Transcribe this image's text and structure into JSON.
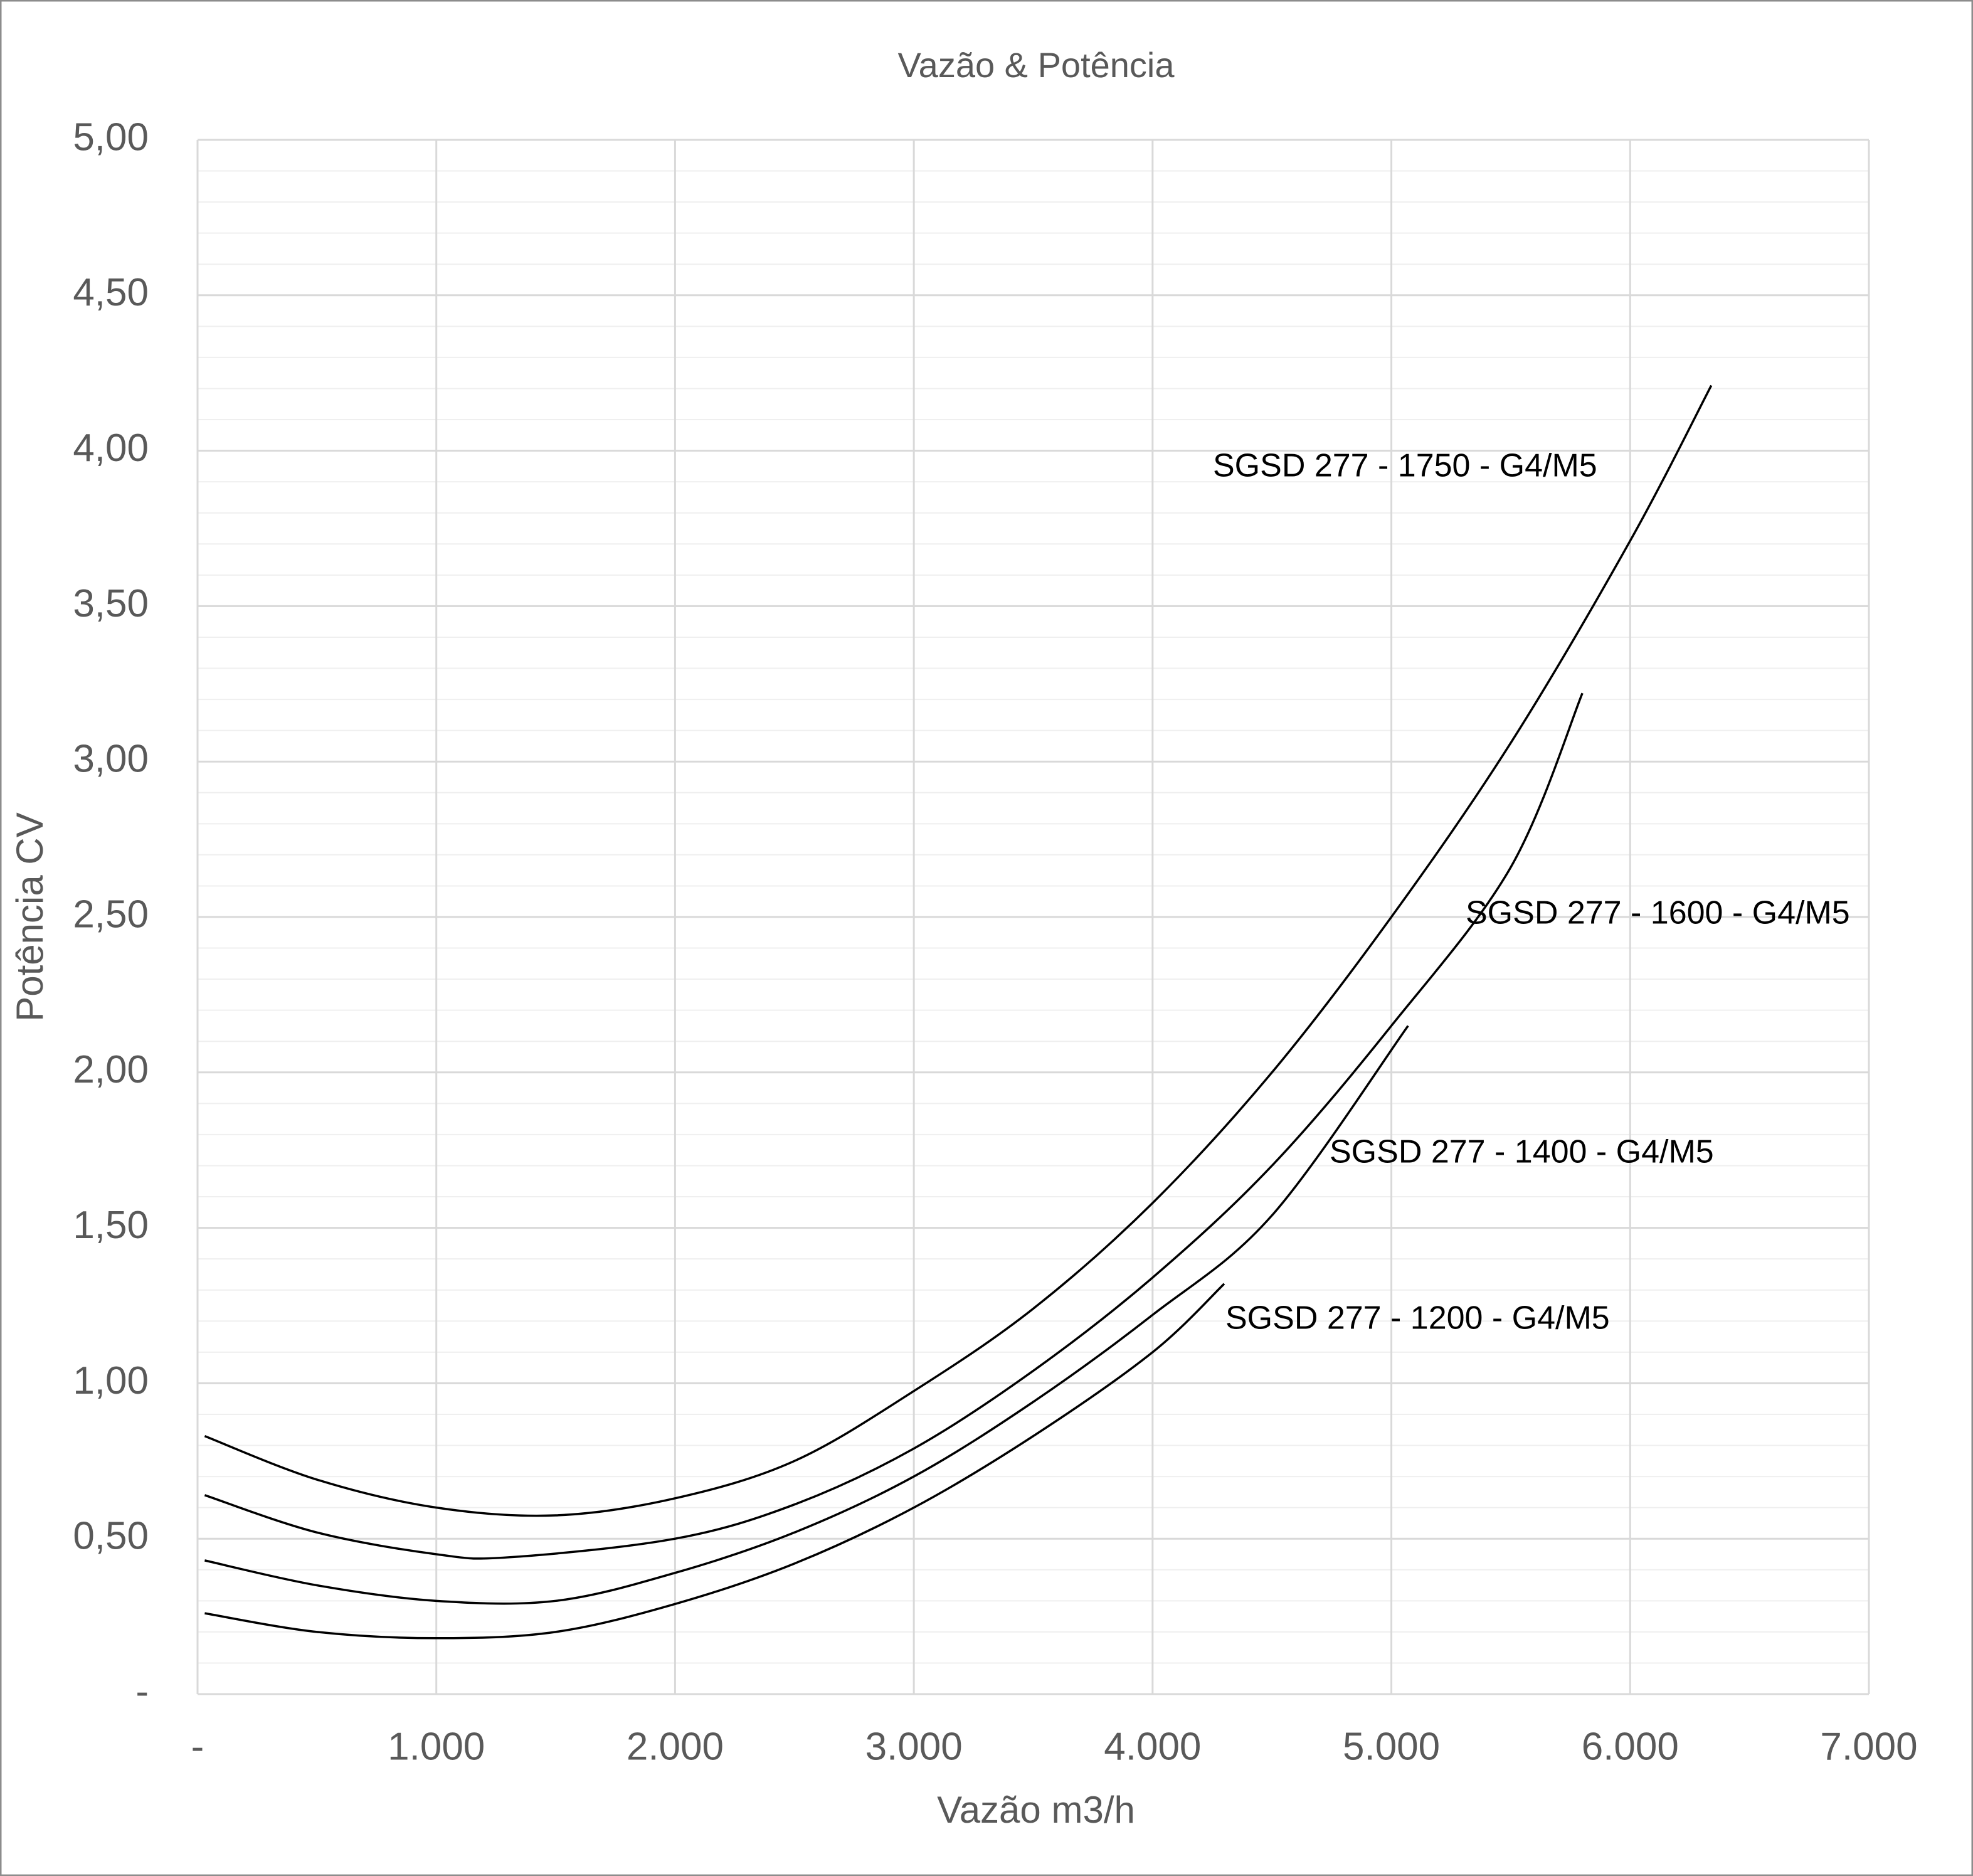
{
  "chart_data": {
    "type": "line",
    "title": "Vazão & Potência",
    "x_label": "Vazão m3/h",
    "y_label": "Potência CV",
    "xlim": [
      0,
      7000
    ],
    "ylim": [
      0,
      5
    ],
    "xticks": [
      {
        "value": 0,
        "label": "-"
      },
      {
        "value": 1000,
        "label": "1.000"
      },
      {
        "value": 2000,
        "label": "2.000"
      },
      {
        "value": 3000,
        "label": "3.000"
      },
      {
        "value": 4000,
        "label": "4.000"
      },
      {
        "value": 5000,
        "label": "5.000"
      },
      {
        "value": 6000,
        "label": "6.000"
      },
      {
        "value": 7000,
        "label": "7.000"
      }
    ],
    "yticks": [
      {
        "value": 0,
        "label": "-"
      },
      {
        "value": 0.5,
        "label": "0,50"
      },
      {
        "value": 1,
        "label": "1,00"
      },
      {
        "value": 1.5,
        "label": "1,50"
      },
      {
        "value": 2,
        "label": "2,00"
      },
      {
        "value": 2.5,
        "label": "2,50"
      },
      {
        "value": 3,
        "label": "3,00"
      },
      {
        "value": 3.5,
        "label": "3,50"
      },
      {
        "value": 4,
        "label": "4,00"
      },
      {
        "value": 4.5,
        "label": "4,50"
      },
      {
        "value": 5,
        "label": "5,00"
      }
    ],
    "minor_yticks": [
      0.1,
      0.2,
      0.3,
      0.4,
      0.6,
      0.7,
      0.8,
      0.9,
      1.1,
      1.2,
      1.3,
      1.4,
      1.6,
      1.7,
      1.8,
      1.9,
      2.1,
      2.2,
      2.3,
      2.4,
      2.6,
      2.7,
      2.8,
      2.9,
      3.1,
      3.2,
      3.3,
      3.4,
      3.6,
      3.7,
      3.8,
      3.9,
      4.1,
      4.2,
      4.3,
      4.4,
      4.6,
      4.7,
      4.8,
      4.9
    ],
    "grid": true,
    "series": [
      {
        "name": "SGSD 277 - 1750 - G4/M5",
        "color": "#000000",
        "x": [
          30,
          500,
          1000,
          1500,
          2000,
          2500,
          3000,
          3500,
          4000,
          4500,
          5000,
          5500,
          6000,
          6340
        ],
        "values": [
          0.83,
          0.69,
          0.6,
          0.575,
          0.63,
          0.75,
          0.975,
          1.24,
          1.58,
          2.0,
          2.5,
          3.06,
          3.71,
          4.21
        ]
      },
      {
        "name": "SGSD 277 - 1600 - G4/M5",
        "color": "#000000",
        "x": [
          30,
          500,
          1000,
          1300,
          2000,
          2500,
          3000,
          3500,
          4000,
          4500,
          5000,
          5500,
          5800
        ],
        "values": [
          0.64,
          0.52,
          0.45,
          0.44,
          0.5,
          0.61,
          0.79,
          1.04,
          1.34,
          1.7,
          2.15,
          2.66,
          3.22
        ]
      },
      {
        "name": "SGSD 277 - 1400 - G4/M5",
        "color": "#000000",
        "x": [
          30,
          500,
          1000,
          1500,
          2000,
          2500,
          3000,
          3500,
          4000,
          4500,
          5070
        ],
        "values": [
          0.43,
          0.35,
          0.3,
          0.3,
          0.39,
          0.52,
          0.7,
          0.94,
          1.22,
          1.54,
          2.15
        ]
      },
      {
        "name": "SGSD 277 - 1200 - G4/M5",
        "color": "#000000",
        "x": [
          30,
          500,
          1000,
          1500,
          2000,
          2500,
          3000,
          3500,
          4000,
          4300
        ],
        "values": [
          0.26,
          0.2,
          0.18,
          0.2,
          0.29,
          0.42,
          0.6,
          0.83,
          1.1,
          1.32
        ]
      }
    ]
  }
}
